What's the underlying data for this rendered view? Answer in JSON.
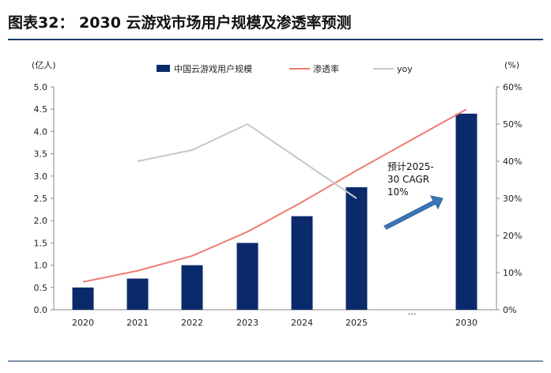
{
  "header": {
    "title": "图表32：  2030 云游戏市场用户规模及渗透率预测"
  },
  "chart_data": {
    "type": "bar",
    "categories": [
      "2020",
      "2021",
      "2022",
      "2023",
      "2024",
      "2025",
      "2030"
    ],
    "gap_label": "…",
    "left_unit": "(亿人)",
    "right_unit": "(%)",
    "ylim_left": [
      0,
      5
    ],
    "ylim_right": [
      0,
      60
    ],
    "left_ticks": [
      "0.0",
      "0.5",
      "1.0",
      "1.5",
      "2.0",
      "2.5",
      "3.0",
      "3.5",
      "4.0",
      "4.5",
      "5.0"
    ],
    "right_ticks": [
      "0%",
      "10%",
      "20%",
      "30%",
      "40%",
      "50%",
      "60%"
    ],
    "series": [
      {
        "name": "中国云游戏用户规模",
        "type": "bar",
        "axis": "left",
        "color": "#0b2a6b",
        "values": [
          0.5,
          0.7,
          1.0,
          1.5,
          2.1,
          2.75,
          4.4
        ]
      },
      {
        "name": "渗透率",
        "type": "line",
        "axis": "right",
        "color": "#f07c74",
        "values": [
          7.5,
          10.5,
          14.5,
          21,
          29,
          37.5,
          54
        ]
      },
      {
        "name": "yoy",
        "type": "line",
        "axis": "right",
        "color": "#c8c8c8",
        "values": [
          null,
          40,
          43,
          50,
          40,
          30,
          null
        ]
      }
    ],
    "annotation": [
      "预计2025-",
      "30 CAGR",
      "10%"
    ]
  }
}
